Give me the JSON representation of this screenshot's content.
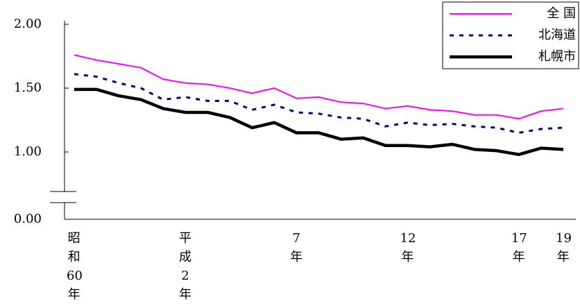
{
  "chart_data": {
    "type": "line",
    "categories": [
      "昭和60年",
      null,
      null,
      null,
      null,
      "平成2年",
      null,
      null,
      null,
      null,
      "7年",
      null,
      null,
      null,
      null,
      "12年",
      null,
      null,
      null,
      null,
      "17年",
      null,
      "19年"
    ],
    "series": [
      {
        "name": "全 国",
        "color": "#ff00ff",
        "values": [
          1.76,
          1.72,
          1.69,
          1.66,
          1.57,
          1.54,
          1.53,
          1.5,
          1.46,
          1.5,
          1.42,
          1.43,
          1.39,
          1.38,
          1.34,
          1.36,
          1.33,
          1.32,
          1.29,
          1.29,
          1.26,
          1.32,
          1.34
        ]
      },
      {
        "name": "北海道",
        "color": "#000080",
        "values": [
          1.61,
          1.59,
          1.54,
          1.5,
          1.41,
          1.43,
          1.4,
          1.4,
          1.33,
          1.37,
          1.31,
          1.3,
          1.27,
          1.26,
          1.2,
          1.23,
          1.21,
          1.22,
          1.2,
          1.19,
          1.15,
          1.18,
          1.19
        ]
      },
      {
        "name": "札幌市",
        "color": "#000000",
        "values": [
          1.49,
          1.49,
          1.44,
          1.41,
          1.34,
          1.31,
          1.31,
          1.27,
          1.19,
          1.23,
          1.15,
          1.15,
          1.1,
          1.11,
          1.05,
          1.05,
          1.04,
          1.06,
          1.02,
          1.01,
          0.98,
          1.03,
          1.02
        ]
      }
    ],
    "ylim": [
      0,
      2
    ],
    "yticks": [
      {
        "value": 0,
        "label": "0.00"
      },
      {
        "value": 1,
        "label": "1.00"
      },
      {
        "value": 1.5,
        "label": "1.50"
      },
      {
        "value": 2,
        "label": "2.00"
      }
    ],
    "legend": "upper right"
  }
}
